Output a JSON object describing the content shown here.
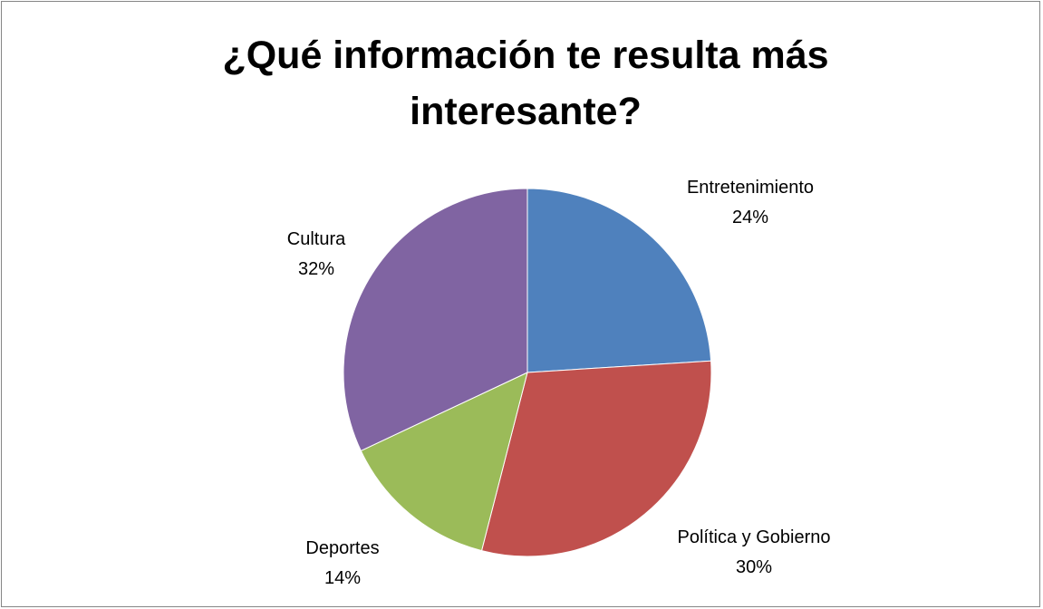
{
  "chart_data": {
    "type": "pie",
    "title": "¿Qué información te resulta más interesante?",
    "title_lines": [
      "¿Qué información te resulta más",
      "interesante?"
    ],
    "slices": [
      {
        "name": "Entretenimiento",
        "value": 24,
        "label": "24%",
        "color": "#4F81BD"
      },
      {
        "name": "Política y Gobierno",
        "value": 30,
        "label": "30%",
        "color": "#C0504D"
      },
      {
        "name": "Deportes",
        "value": 14,
        "label": "14%",
        "color": "#9BBB59"
      },
      {
        "name": "Cultura",
        "value": 32,
        "label": "32%",
        "color": "#8064A2"
      }
    ],
    "legend": "none",
    "start_angle_deg": 0,
    "direction": "clockwise"
  }
}
